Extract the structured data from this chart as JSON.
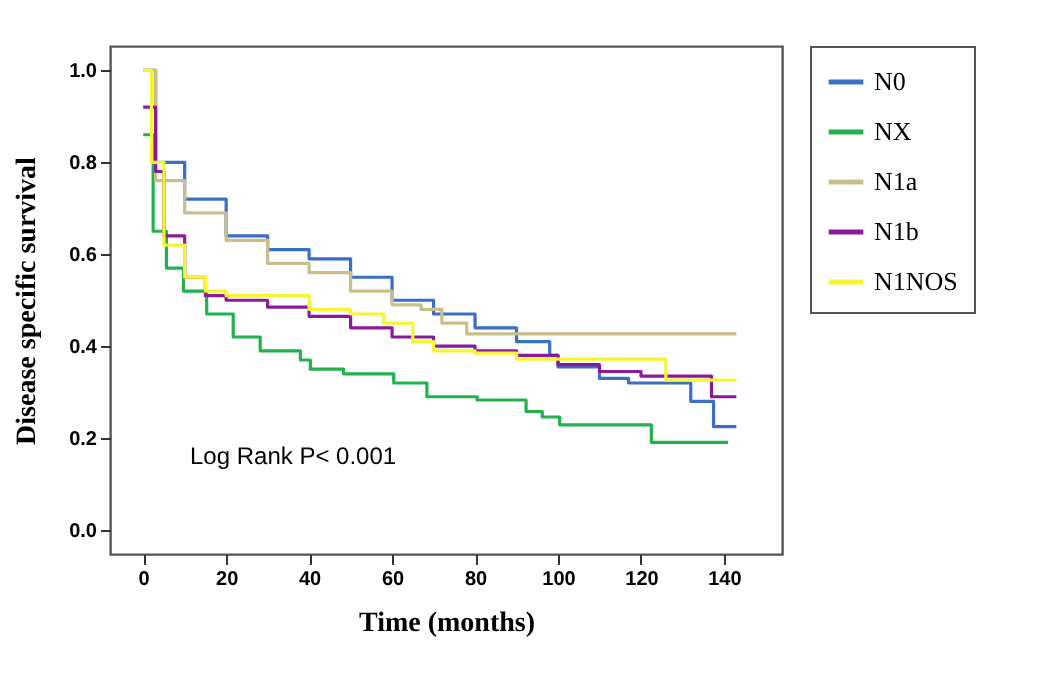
{
  "chart_data": {
    "type": "step",
    "xlabel": "Time (months)",
    "ylabel": "Disease  specific  survival",
    "xlim": [
      -8,
      154
    ],
    "ylim": [
      -0.052,
      1.053
    ],
    "xticks": [
      0,
      20,
      40,
      60,
      80,
      100,
      120,
      140
    ],
    "yticks": [
      {
        "value": 0,
        "label": "0.0"
      },
      {
        "value": 0.2,
        "label": "0.2"
      },
      {
        "value": 0.4,
        "label": "0.4"
      },
      {
        "value": 0.6,
        "label": "0.6"
      },
      {
        "value": 0.8,
        "label": "0.8"
      },
      {
        "value": 1,
        "label": "1.0"
      }
    ],
    "grid": false,
    "legend": "right",
    "marker": "none",
    "line_style": "solid",
    "annotations": [
      "Log Rank P< 0.001"
    ],
    "series": [
      {
        "name": "N0",
        "color": "#3a6fc4",
        "x": [
          0,
          3,
          10,
          20,
          30,
          40,
          50,
          60,
          70,
          80,
          90,
          98,
          100,
          110,
          117,
          132,
          137.5,
          143
        ],
        "values": [
          1.0,
          0.8,
          0.72,
          0.64,
          0.61,
          0.59,
          0.55,
          0.5,
          0.47,
          0.44,
          0.41,
          0.38,
          0.355,
          0.33,
          0.32,
          0.28,
          0.225,
          0.225
        ]
      },
      {
        "name": "NX",
        "color": "#22b14c",
        "x": [
          0,
          2.4,
          5.6,
          9.7,
          15.3,
          21.7,
          28.2,
          37.9,
          40.3,
          48.3,
          60.4,
          68.4,
          80.5,
          92.3,
          96.2,
          100.4,
          122.5,
          141
        ],
        "values": [
          0.86,
          0.65,
          0.57,
          0.52,
          0.47,
          0.42,
          0.39,
          0.37,
          0.35,
          0.34,
          0.32,
          0.29,
          0.283,
          0.258,
          0.246,
          0.229,
          0.191,
          0.191
        ]
      },
      {
        "name": "N1a",
        "color": "#c8bf8c",
        "x": [
          0,
          3,
          10,
          20,
          30,
          40,
          50,
          60,
          67,
          72,
          78,
          143
        ],
        "values": [
          1.0,
          0.76,
          0.69,
          0.63,
          0.58,
          0.56,
          0.52,
          0.49,
          0.48,
          0.45,
          0.427,
          0.427
        ]
      },
      {
        "name": "N1b",
        "color": "#8b1a9a",
        "x": [
          0,
          3,
          5,
          10,
          15,
          20,
          30,
          40,
          50,
          60,
          70,
          80,
          90,
          100,
          110,
          120,
          137,
          143
        ],
        "values": [
          0.92,
          0.78,
          0.64,
          0.55,
          0.51,
          0.5,
          0.485,
          0.465,
          0.44,
          0.42,
          0.4,
          0.39,
          0.38,
          0.36,
          0.345,
          0.335,
          0.29,
          0.29
        ]
      },
      {
        "name": "N1NOS",
        "color": "#f5f531",
        "x": [
          0,
          2,
          5,
          10,
          15,
          20,
          30,
          40,
          50,
          58,
          65,
          70,
          80,
          90,
          126,
          143
        ],
        "values": [
          1.0,
          0.8,
          0.62,
          0.55,
          0.52,
          0.51,
          0.51,
          0.48,
          0.47,
          0.45,
          0.41,
          0.39,
          0.385,
          0.372,
          0.326,
          0.326
        ]
      }
    ]
  }
}
